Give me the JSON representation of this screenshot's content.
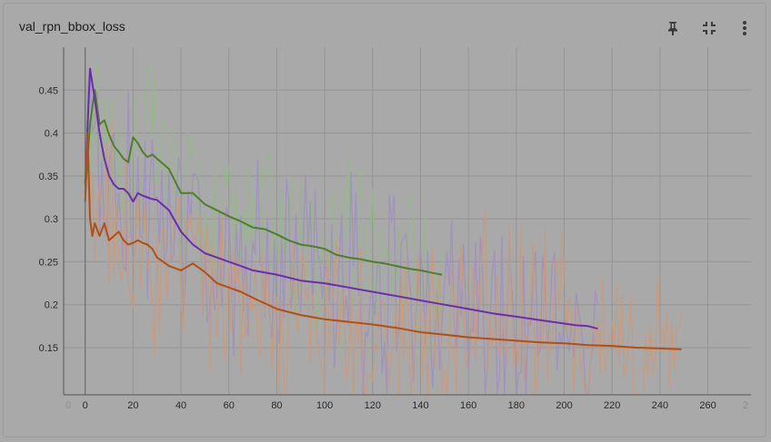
{
  "card": {
    "title": "val_rpn_bbox_loss",
    "icons": [
      "pin-icon",
      "collapse-icon",
      "more-vert-icon"
    ]
  },
  "colors": {
    "background": "#a9a9a9",
    "grid": "#959595",
    "green": "#4f7e2d",
    "purple": "#6a2ea8",
    "orange": "#b24f14",
    "green_raw": "#95b78a",
    "purple_raw": "#a18ec2",
    "orange_raw": "#c99a7c"
  },
  "chart_data": {
    "type": "line",
    "xlim": [
      -9,
      278
    ],
    "ylim": [
      0.095,
      0.5
    ],
    "x_ticks": [
      0,
      20,
      40,
      60,
      80,
      100,
      120,
      140,
      160,
      180,
      200,
      220,
      240,
      260
    ],
    "x_tick_edge": [
      "0",
      "2"
    ],
    "y_ticks": [
      0.15,
      0.2,
      0.25,
      0.3,
      0.35,
      0.4,
      0.45
    ],
    "y_tick_labels": [
      "0.15",
      "0.2",
      "0.25",
      "0.3",
      "0.35",
      "0.4",
      "0.45"
    ],
    "series": [
      {
        "color_key": "green",
        "raw_color_key": "green_raw",
        "x": [
          0,
          2,
          4,
          6,
          8,
          10,
          12,
          14,
          16,
          18,
          20,
          22,
          24,
          26,
          28,
          30,
          35,
          40,
          45,
          50,
          55,
          60,
          65,
          70,
          75,
          80,
          85,
          90,
          95,
          100,
          105,
          110,
          115,
          120,
          125,
          130,
          135,
          140,
          145,
          149
        ],
        "y": [
          0.33,
          0.41,
          0.45,
          0.41,
          0.415,
          0.398,
          0.385,
          0.378,
          0.37,
          0.366,
          0.395,
          0.388,
          0.378,
          0.372,
          0.375,
          0.37,
          0.358,
          0.33,
          0.33,
          0.317,
          0.31,
          0.303,
          0.297,
          0.29,
          0.288,
          0.282,
          0.275,
          0.27,
          0.268,
          0.265,
          0.258,
          0.255,
          0.253,
          0.25,
          0.248,
          0.245,
          0.242,
          0.24,
          0.237,
          0.235
        ]
      },
      {
        "color_key": "purple",
        "raw_color_key": "purple_raw",
        "x": [
          0,
          2,
          4,
          6,
          8,
          10,
          12,
          14,
          16,
          18,
          20,
          22,
          24,
          26,
          28,
          30,
          35,
          40,
          45,
          50,
          55,
          60,
          65,
          70,
          80,
          90,
          100,
          110,
          120,
          130,
          140,
          150,
          160,
          170,
          180,
          190,
          200,
          205,
          210,
          214
        ],
        "y": [
          0.34,
          0.475,
          0.44,
          0.4,
          0.37,
          0.35,
          0.34,
          0.335,
          0.335,
          0.33,
          0.32,
          0.33,
          0.327,
          0.325,
          0.323,
          0.322,
          0.31,
          0.285,
          0.27,
          0.26,
          0.255,
          0.25,
          0.245,
          0.24,
          0.235,
          0.228,
          0.225,
          0.22,
          0.215,
          0.21,
          0.205,
          0.2,
          0.195,
          0.19,
          0.186,
          0.182,
          0.178,
          0.176,
          0.175,
          0.172
        ]
      },
      {
        "color_key": "orange",
        "raw_color_key": "orange_raw",
        "x": [
          0,
          1,
          2,
          3,
          4,
          6,
          8,
          10,
          12,
          14,
          16,
          18,
          20,
          22,
          24,
          26,
          28,
          30,
          35,
          40,
          45,
          50,
          55,
          60,
          65,
          70,
          80,
          90,
          100,
          110,
          120,
          130,
          140,
          150,
          160,
          170,
          180,
          190,
          200,
          210,
          220,
          230,
          240,
          249
        ],
        "y": [
          0.32,
          0.4,
          0.3,
          0.28,
          0.295,
          0.28,
          0.295,
          0.275,
          0.28,
          0.285,
          0.275,
          0.27,
          0.272,
          0.275,
          0.272,
          0.27,
          0.265,
          0.255,
          0.245,
          0.24,
          0.248,
          0.238,
          0.225,
          0.22,
          0.215,
          0.208,
          0.195,
          0.188,
          0.183,
          0.18,
          0.177,
          0.173,
          0.168,
          0.165,
          0.162,
          0.16,
          0.158,
          0.156,
          0.155,
          0.153,
          0.152,
          0.15,
          0.149,
          0.148
        ]
      }
    ]
  }
}
